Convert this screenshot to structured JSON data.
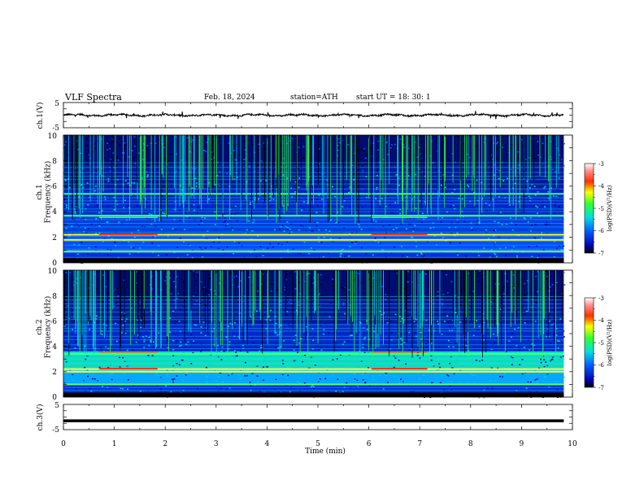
{
  "header": {
    "title": "VLF  Spectra",
    "date": "Feb. 18, 2024",
    "station": "station=ATH",
    "start": "start  UT  =    18: 30: 1"
  },
  "chart_data": [
    {
      "type": "line",
      "panel": "ch1-waveform",
      "ylabel": "ch.1(V)",
      "ylim": [
        -5,
        5
      ],
      "yticks": [
        "5",
        "-5"
      ],
      "xlim": [
        0,
        10
      ],
      "baseline": 0,
      "series": [
        {
          "values_note_mean": 0
        }
      ]
    },
    {
      "type": "heatmap",
      "panel": "ch1-spectrogram",
      "ylabel": "ch.1\nFrequency  (kHz)",
      "ylim": [
        0,
        10
      ],
      "yticks": [
        "0",
        "2",
        "4",
        "6",
        "8",
        "10"
      ],
      "xlim": [
        0,
        10
      ],
      "data_end_min": 9.83,
      "colorbar": {
        "label": "log(PSD)(V²/Hz)",
        "ticks": [
          "-3",
          "-4",
          "-5",
          "-6",
          "-7"
        ],
        "range": [
          -7,
          -3
        ]
      },
      "bands_khz": [
        0.3,
        0.9,
        1.8,
        2.2,
        3.7,
        5.4
      ],
      "enhanced_intervals_min": [
        [
          0.7,
          1.85
        ],
        [
          6.05,
          7.15
        ]
      ]
    },
    {
      "type": "heatmap",
      "panel": "ch2-spectrogram",
      "ylabel": "ch.2\nFrequency  (kHz)",
      "ylim": [
        0,
        10
      ],
      "yticks": [
        "0",
        "2",
        "4",
        "6",
        "8",
        "10"
      ],
      "xlim": [
        0,
        10
      ],
      "data_end_min": 9.83,
      "colorbar": {
        "label": "log(PSD)(V²/Hz)",
        "ticks": [
          "-3",
          "-4",
          "-5",
          "-6",
          "-7"
        ],
        "range": [
          -7,
          -3
        ]
      },
      "bands_khz": [
        0.3,
        1.0,
        2.0,
        2.2,
        3.4
      ],
      "enhanced_intervals_min": [
        [
          0.7,
          1.85
        ],
        [
          6.05,
          7.15
        ]
      ]
    },
    {
      "type": "line",
      "panel": "ch3-waveform",
      "ylabel": "ch.3(V)",
      "ylim": [
        -5,
        5
      ],
      "yticks": [
        "5",
        "-5"
      ],
      "xlim": [
        0,
        10
      ],
      "baseline": -1.5
    }
  ],
  "xaxis": {
    "label": "Time  (min)",
    "ticks": [
      "0",
      "1",
      "2",
      "3",
      "4",
      "5",
      "6",
      "7",
      "8",
      "9",
      "10"
    ]
  },
  "colors": {
    "ink": "#000000",
    "cbar_stops": [
      "#000000",
      "#0000b0",
      "#0060ff",
      "#00e0e0",
      "#30ff30",
      "#ffff00",
      "#ff3000",
      "#ff9090",
      "#ffffff"
    ]
  }
}
